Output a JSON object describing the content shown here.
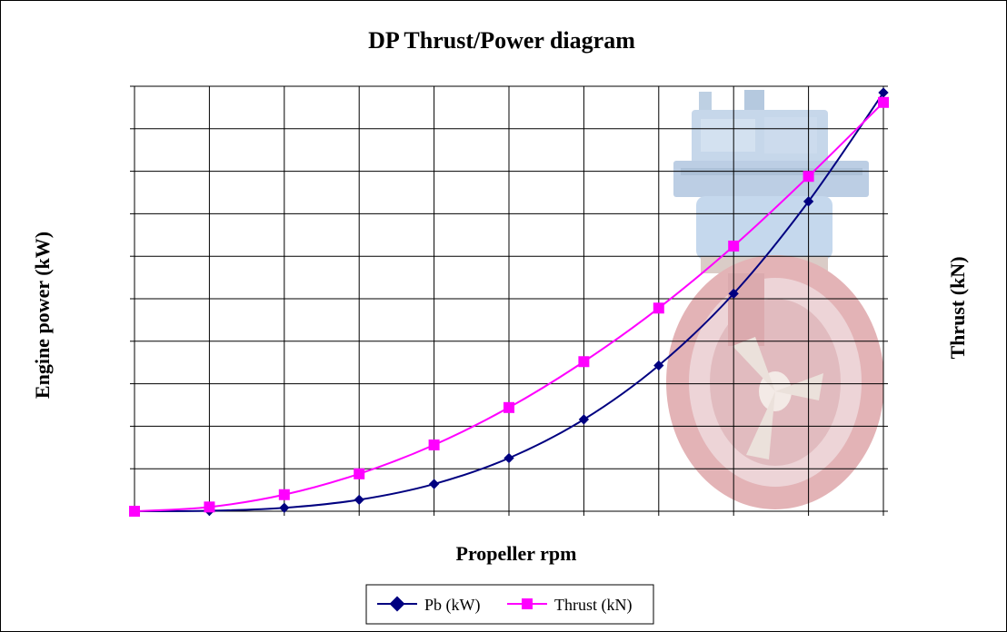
{
  "chart_data": {
    "type": "line",
    "title": "DP Thrust/Power diagram",
    "xlabel": "Propeller rpm",
    "ylabel_left": "Engine power (kW)",
    "ylabel_right": "Thrust (kN)",
    "grid": true,
    "tick_labels_visible": false,
    "x": [
      0,
      1,
      2,
      3,
      4,
      5,
      6,
      7,
      8,
      9,
      10
    ],
    "xlim": [
      0,
      10
    ],
    "ylim": [
      0,
      100
    ],
    "series": [
      {
        "name": "Pb (kW)",
        "color": "#000080",
        "marker": "diamond",
        "values": [
          0,
          0.1,
          0.8,
          2.7,
          6.4,
          12.5,
          21.6,
          34.3,
          51.2,
          72.9,
          98.5
        ]
      },
      {
        "name": "Thrust (kN)",
        "color": "#ff00ff",
        "marker": "square",
        "values": [
          0,
          1.0,
          3.9,
          8.8,
          15.6,
          24.4,
          35.2,
          47.8,
          62.4,
          78.8,
          96.2
        ]
      }
    ],
    "legend_position": "bottom-center",
    "background_image": "azimuth-thruster-image"
  }
}
